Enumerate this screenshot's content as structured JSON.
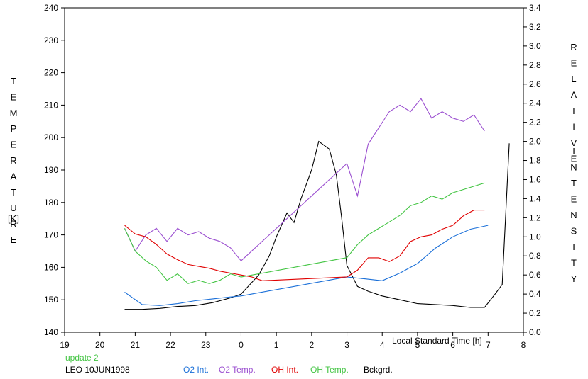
{
  "chart_data": {
    "type": "line",
    "title": "",
    "left_axis": {
      "label_letters": [
        "T",
        "E",
        "M",
        "P",
        "E",
        "R",
        "A",
        "T",
        "U",
        "R",
        "E"
      ],
      "unit": "[K]",
      "ylim": [
        140,
        240
      ],
      "ticks": [
        "140",
        "150",
        "160",
        "170",
        "180",
        "190",
        "200",
        "210",
        "220",
        "230",
        "240"
      ]
    },
    "right_axis": {
      "label_letters_1": [
        "R",
        "E",
        "L",
        "A",
        "T",
        "I",
        "V",
        "E"
      ],
      "label_letters_2": [
        "I",
        "N",
        "T",
        "E",
        "N",
        "S",
        "I",
        "T",
        "Y"
      ],
      "ylim": [
        0.0,
        3.4
      ],
      "ticks": [
        "0.0",
        "0.2",
        "0.4",
        "0.6",
        "0.8",
        "1.0",
        "1.2",
        "1.4",
        "1.6",
        "1.8",
        "2.0",
        "2.2",
        "2.4",
        "2.6",
        "2.8",
        "3.0",
        "3.2",
        "3.4"
      ]
    },
    "x_axis": {
      "label": "Local Standard Time [h]",
      "xlim": [
        19,
        32
      ],
      "ticks": [
        "19",
        "20",
        "21",
        "22",
        "23",
        "0",
        "1",
        "2",
        "3",
        "4",
        "5",
        "6",
        "7",
        "8"
      ]
    },
    "grid": false,
    "legend_position": "bottom",
    "series": [
      {
        "name": "O2 Int.",
        "axis": "right",
        "color": "#1a6fd8",
        "x": [
          20.7,
          21.2,
          21.7,
          22.2,
          22.7,
          23.2,
          23.7,
          24.0,
          24.3,
          27.0,
          27.5,
          28.0,
          28.5,
          29.0,
          29.5,
          30.0,
          30.5,
          31.0
        ],
        "y": [
          0.42,
          0.29,
          0.28,
          0.3,
          0.33,
          0.35,
          0.37,
          0.38,
          0.4,
          0.58,
          0.56,
          0.54,
          0.62,
          0.72,
          0.88,
          1.0,
          1.08,
          1.12
        ]
      },
      {
        "name": "O2 Temp.",
        "axis": "left",
        "color": "#9b4fd0",
        "x": [
          20.7,
          21.0,
          21.3,
          21.6,
          21.9,
          22.2,
          22.5,
          22.8,
          23.1,
          23.4,
          23.7,
          24.0,
          27.0,
          27.3,
          27.6,
          27.9,
          28.2,
          28.5,
          28.8,
          29.1,
          29.4,
          29.7,
          30.0,
          30.3,
          30.6,
          30.9
        ],
        "y": [
          172,
          165,
          170,
          172,
          168,
          172,
          170,
          171,
          169,
          168,
          166,
          162,
          192,
          182,
          198,
          203,
          208,
          210,
          208,
          212,
          206,
          208,
          206,
          205,
          207,
          202
        ]
      },
      {
        "name": "OH Int.",
        "axis": "right",
        "color": "#e00000",
        "x": [
          20.7,
          21.0,
          21.3,
          21.6,
          21.9,
          22.2,
          22.5,
          22.8,
          23.1,
          23.4,
          23.7,
          24.0,
          24.3,
          24.6,
          27.0,
          27.3,
          27.6,
          27.9,
          28.2,
          28.5,
          28.8,
          29.1,
          29.4,
          29.7,
          30.0,
          30.3,
          30.6,
          30.9
        ],
        "y": [
          1.12,
          1.03,
          1.0,
          0.92,
          0.82,
          0.76,
          0.71,
          0.69,
          0.67,
          0.64,
          0.62,
          0.6,
          0.58,
          0.54,
          0.58,
          0.65,
          0.78,
          0.78,
          0.74,
          0.8,
          0.95,
          1.0,
          1.02,
          1.08,
          1.12,
          1.22,
          1.28,
          1.28
        ]
      },
      {
        "name": "OH Temp.",
        "axis": "left",
        "color": "#44c544",
        "x": [
          20.7,
          21.0,
          21.3,
          21.6,
          21.9,
          22.2,
          22.5,
          22.8,
          23.1,
          23.4,
          23.7,
          24.0,
          27.0,
          27.3,
          27.6,
          27.9,
          28.2,
          28.5,
          28.8,
          29.1,
          29.4,
          29.7,
          30.0,
          30.3,
          30.6,
          30.9
        ],
        "y": [
          172,
          165,
          162,
          160,
          156,
          158,
          155,
          156,
          155,
          156,
          158,
          157,
          163,
          167,
          170,
          172,
          174,
          176,
          179,
          180,
          182,
          181,
          183,
          184,
          185,
          186
        ]
      },
      {
        "name": "Bckgrd.",
        "axis": "right",
        "color": "#000000",
        "x": [
          20.7,
          21.2,
          21.7,
          22.2,
          22.7,
          23.2,
          23.7,
          24.0,
          24.5,
          24.8,
          25.0,
          25.3,
          25.5,
          25.7,
          26.0,
          26.2,
          26.5,
          26.7,
          26.85,
          27.0,
          27.3,
          27.6,
          28.0,
          28.5,
          29.0,
          29.5,
          30.0,
          30.5,
          30.9,
          31.2,
          31.4,
          31.6
        ],
        "y": [
          0.24,
          0.24,
          0.25,
          0.27,
          0.28,
          0.31,
          0.36,
          0.4,
          0.6,
          0.8,
          1.0,
          1.25,
          1.15,
          1.4,
          1.7,
          2.0,
          1.92,
          1.65,
          1.2,
          0.7,
          0.48,
          0.43,
          0.38,
          0.34,
          0.3,
          0.29,
          0.28,
          0.26,
          0.26,
          0.4,
          0.5,
          1.98
        ]
      }
    ],
    "annotations": [
      "update 2",
      "LEO 10JUN1998"
    ],
    "annotation_colors": [
      "#44c544",
      "#000000"
    ]
  }
}
